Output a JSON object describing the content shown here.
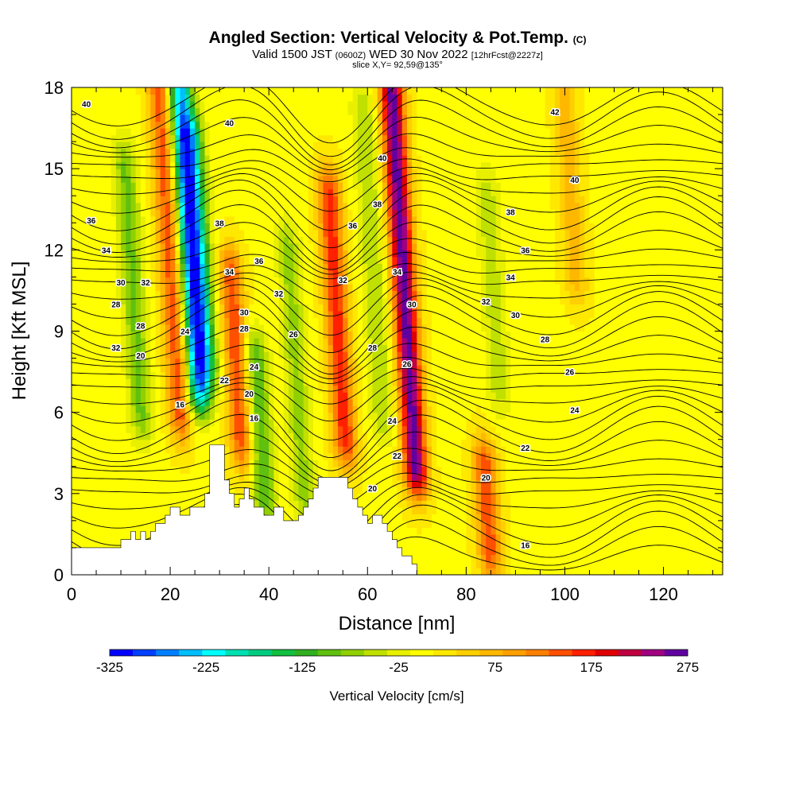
{
  "header": {
    "title": "Angled Section: Vertical Velocity & Pot.Temp.",
    "title_unit": "(C)",
    "valid_prefix": "Valid 1500 JST",
    "valid_utc": "(0600Z)",
    "valid_date": "WED 30 Nov 2022",
    "forecast_tag": "[12hrFcst@2227z]",
    "slice": "slice X,Y= 92,59@135°"
  },
  "chart_data": {
    "type": "heatmap",
    "xlabel": "Distance [nm]",
    "ylabel": "Height [Kft MSL]",
    "xlim": [
      0,
      132
    ],
    "ylim": [
      0,
      18
    ],
    "x_ticks": [
      0,
      20,
      40,
      60,
      80,
      100,
      120
    ],
    "y_ticks": [
      0,
      3,
      6,
      9,
      12,
      15,
      18
    ],
    "colorbar": {
      "label": "Vertical Velocity [cm/s]",
      "min": -325,
      "max": 275,
      "step": 25,
      "tick_labels": [
        "-325",
        "-225",
        "-125",
        "-25",
        "75",
        "175",
        "275"
      ],
      "colors": [
        "#0000ff",
        "#0040ff",
        "#0080ff",
        "#00bfff",
        "#00ffff",
        "#00e0b0",
        "#00cc80",
        "#10c040",
        "#30b020",
        "#60c010",
        "#90d000",
        "#c0e000",
        "#e8f000",
        "#ffff00",
        "#ffe800",
        "#ffd000",
        "#ffb800",
        "#ffa000",
        "#ff8000",
        "#ff5000",
        "#ff2000",
        "#e00000",
        "#c00040",
        "#a00080",
        "#6000a0"
      ]
    },
    "vertical_velocity_features": [
      {
        "kind": "updraft",
        "x": 21,
        "y_range": [
          6,
          18
        ],
        "w": 150
      },
      {
        "kind": "downdraft",
        "x": 25,
        "y_range": [
          7,
          18
        ],
        "w": -260
      },
      {
        "kind": "downdraft",
        "x": 27,
        "y_range": [
          8,
          16
        ],
        "w": -150
      },
      {
        "kind": "updraft",
        "x": 33,
        "y_range": [
          5,
          11
        ],
        "w": 150
      },
      {
        "kind": "downdraft",
        "x": 13,
        "y_range": [
          6,
          15
        ],
        "w": -100
      },
      {
        "kind": "downdraft",
        "x": 37,
        "y_range": [
          3,
          8
        ],
        "w": -120
      },
      {
        "kind": "downdraft",
        "x": 45,
        "y_range": [
          3,
          12
        ],
        "w": -80
      },
      {
        "kind": "updraft",
        "x": 54,
        "y_range": [
          5,
          14
        ],
        "w": 170
      },
      {
        "kind": "updraft",
        "x": 68,
        "y_range": [
          4,
          18
        ],
        "w": 270
      },
      {
        "kind": "downdraft",
        "x": 62,
        "y_range": [
          6,
          17
        ],
        "w": -70
      },
      {
        "kind": "downdraft",
        "x": 86,
        "y_range": [
          7,
          14
        ],
        "w": -60
      },
      {
        "kind": "updraft",
        "x": 82,
        "y_range": [
          1,
          4
        ],
        "w": 150
      },
      {
        "kind": "updraft",
        "x": 103,
        "y_range": [
          11,
          18
        ],
        "w": 70
      }
    ],
    "terrain_profile": {
      "x": [
        0,
        7,
        10,
        12,
        13,
        14,
        15,
        16,
        17,
        19,
        20,
        21,
        22,
        24,
        26,
        27,
        28,
        29,
        30,
        31,
        32,
        33,
        34,
        35,
        36,
        37,
        38,
        39,
        40,
        41,
        43,
        44,
        45,
        46,
        47,
        48,
        49,
        50,
        51,
        53,
        54,
        55,
        56,
        57,
        58,
        59,
        60,
        61,
        62,
        63,
        64,
        65,
        66,
        67,
        69,
        70,
        132
      ],
      "height": [
        1.0,
        1.0,
        1.3,
        1.6,
        1.3,
        1.6,
        1.3,
        1.6,
        1.9,
        2.2,
        2.5,
        2.5,
        2.2,
        2.5,
        2.5,
        3.0,
        4.8,
        4.8,
        4.8,
        3.5,
        3.0,
        2.5,
        2.8,
        3.2,
        2.8,
        2.5,
        2.5,
        2.2,
        2.2,
        2.5,
        2.0,
        2.0,
        2.0,
        2.2,
        2.5,
        2.8,
        3.2,
        3.6,
        3.6,
        3.6,
        3.6,
        3.6,
        3.2,
        2.8,
        2.5,
        2.2,
        1.9,
        2.2,
        2.2,
        1.9,
        1.6,
        1.3,
        1.0,
        0.7,
        0.4,
        0.0,
        0.0
      ]
    },
    "theta_contours": {
      "interval": 2,
      "labels": [
        {
          "v": "40",
          "x": 3,
          "y": 17.4
        },
        {
          "v": "40",
          "x": 32,
          "y": 16.7
        },
        {
          "v": "40",
          "x": 63,
          "y": 15.4
        },
        {
          "v": "42",
          "x": 98,
          "y": 17.1
        },
        {
          "v": "40",
          "x": 102,
          "y": 14.6
        },
        {
          "v": "36",
          "x": 4,
          "y": 13.1
        },
        {
          "v": "38",
          "x": 30,
          "y": 13.0
        },
        {
          "v": "38",
          "x": 62,
          "y": 13.7
        },
        {
          "v": "38",
          "x": 89,
          "y": 13.4
        },
        {
          "v": "36",
          "x": 57,
          "y": 12.9
        },
        {
          "v": "34",
          "x": 7,
          "y": 12.0
        },
        {
          "v": "36",
          "x": 38,
          "y": 11.6
        },
        {
          "v": "36",
          "x": 92,
          "y": 12.0
        },
        {
          "v": "34",
          "x": 32,
          "y": 11.2
        },
        {
          "v": "34",
          "x": 66,
          "y": 11.2
        },
        {
          "v": "34",
          "x": 89,
          "y": 11.0
        },
        {
          "v": "30",
          "x": 10,
          "y": 10.8
        },
        {
          "v": "32",
          "x": 15,
          "y": 10.8
        },
        {
          "v": "32",
          "x": 55,
          "y": 10.9
        },
        {
          "v": "32",
          "x": 42,
          "y": 10.4
        },
        {
          "v": "32",
          "x": 84,
          "y": 10.1
        },
        {
          "v": "28",
          "x": 9,
          "y": 10.0
        },
        {
          "v": "30",
          "x": 35,
          "y": 9.7
        },
        {
          "v": "30",
          "x": 69,
          "y": 10.0
        },
        {
          "v": "30",
          "x": 90,
          "y": 9.6
        },
        {
          "v": "28",
          "x": 14,
          "y": 9.2
        },
        {
          "v": "28",
          "x": 35,
          "y": 9.1
        },
        {
          "v": "26",
          "x": 45,
          "y": 8.9
        },
        {
          "v": "24",
          "x": 23,
          "y": 9.0
        },
        {
          "v": "28",
          "x": 96,
          "y": 8.7
        },
        {
          "v": "32",
          "x": 9,
          "y": 8.4
        },
        {
          "v": "20",
          "x": 14,
          "y": 8.1
        },
        {
          "v": "28",
          "x": 61,
          "y": 8.4
        },
        {
          "v": "26",
          "x": 68,
          "y": 7.8
        },
        {
          "v": "24",
          "x": 37,
          "y": 7.7
        },
        {
          "v": "26",
          "x": 101,
          "y": 7.5
        },
        {
          "v": "22",
          "x": 31,
          "y": 7.2
        },
        {
          "v": "20",
          "x": 36,
          "y": 6.7
        },
        {
          "v": "16",
          "x": 22,
          "y": 6.3
        },
        {
          "v": "16",
          "x": 37,
          "y": 5.8
        },
        {
          "v": "24",
          "x": 102,
          "y": 6.1
        },
        {
          "v": "24",
          "x": 65,
          "y": 5.7
        },
        {
          "v": "22",
          "x": 92,
          "y": 4.7
        },
        {
          "v": "22",
          "x": 66,
          "y": 4.4
        },
        {
          "v": "20",
          "x": 84,
          "y": 3.6
        },
        {
          "v": "20",
          "x": 61,
          "y": 3.2
        },
        {
          "v": "16",
          "x": 92,
          "y": 1.1
        }
      ]
    }
  }
}
